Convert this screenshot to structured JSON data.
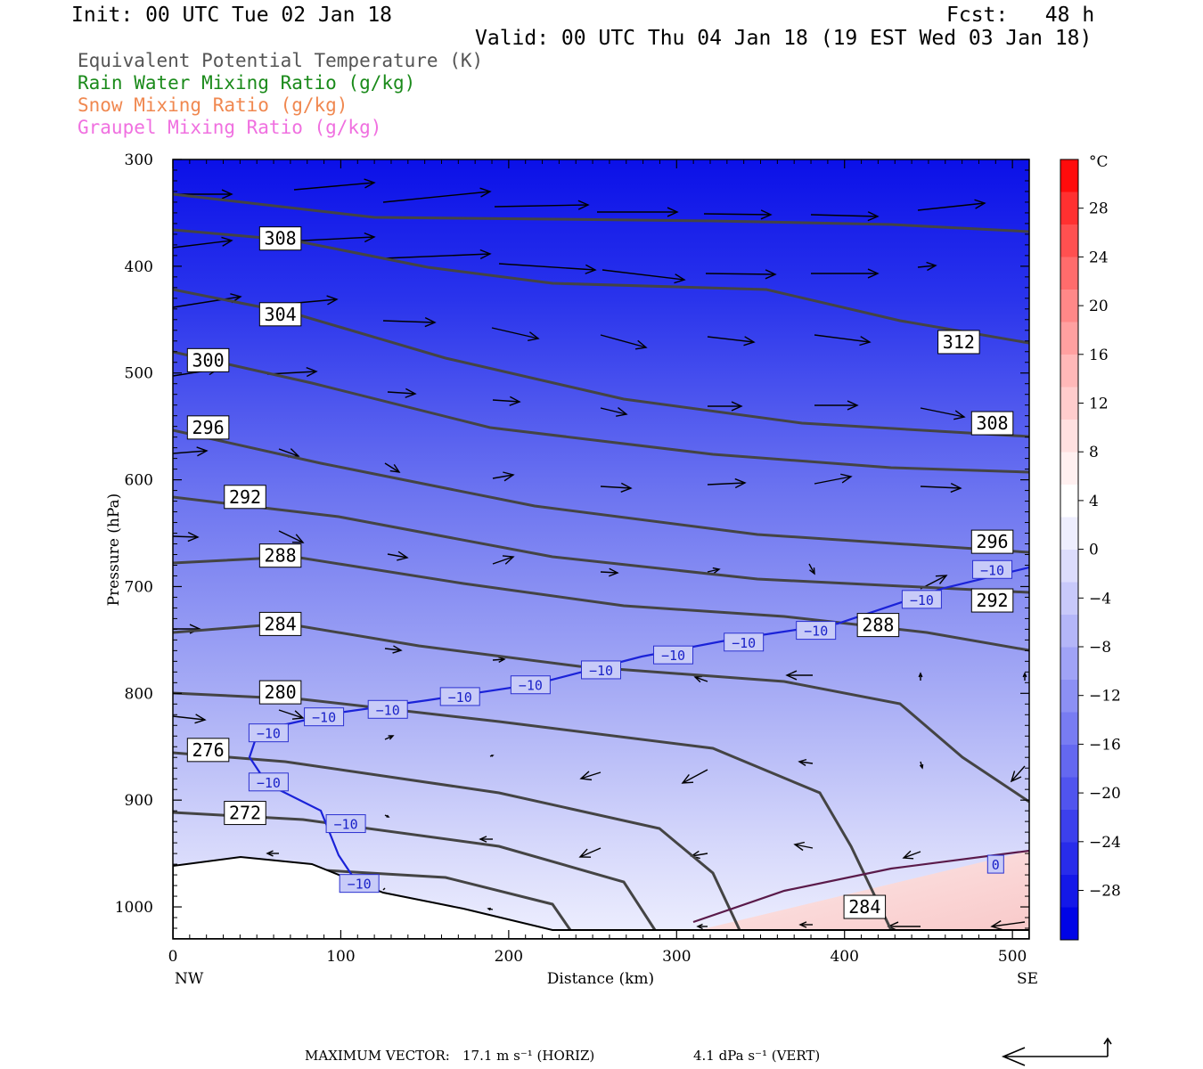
{
  "header": {
    "init": "Init: 00 UTC Tue 02 Jan 18",
    "fcst": "Fcst:   48 h",
    "valid": "Valid: 00 UTC Thu 04 Jan 18 (19 EST Wed 03 Jan 18)"
  },
  "legend": [
    {
      "label": "Equivalent Potential Temperature (K)",
      "color": "#555555"
    },
    {
      "label": "Rain Water Mixing Ratio (g/kg)",
      "color": "#1a8a1a"
    },
    {
      "label": "Snow Mixing Ratio (g/kg)",
      "color": "#f08850"
    },
    {
      "label": "Graupel Mixing Ratio (g/kg)",
      "color": "#f070e0"
    }
  ],
  "footer": {
    "vector_label": "MAXIMUM VECTOR:",
    "horiz": "17.1 m s⁻¹ (HORIZ)",
    "vert": "4.1 dPa s⁻¹ (VERT)"
  },
  "chart_data": {
    "type": "cross-section",
    "xlabel": "Distance (km)",
    "ylabel": "Pressure (hPa)",
    "xlim": [
      0,
      510
    ],
    "ylim": [
      1030,
      300
    ],
    "x_ticks": [
      "0",
      "100",
      "200",
      "300",
      "400",
      "500"
    ],
    "y_ticks": [
      "300",
      "400",
      "500",
      "600",
      "700",
      "800",
      "900",
      "1000"
    ],
    "x_end_labels": {
      "left": "NW",
      "right": "SE"
    },
    "colorbar": {
      "unit": "°C",
      "labels": [
        "28",
        "24",
        "20",
        "16",
        "12",
        "8",
        "4",
        "0",
        "−4",
        "−8",
        "−12",
        "−16",
        "−20",
        "−24",
        "−28"
      ]
    },
    "theta_e_contour_labels": [
      {
        "text": "308",
        "km": 64,
        "hPa": 374
      },
      {
        "text": "304",
        "km": 64,
        "hPa": 445
      },
      {
        "text": "300",
        "km": 21,
        "hPa": 488
      },
      {
        "text": "296",
        "km": 21,
        "hPa": 551
      },
      {
        "text": "292",
        "km": 43,
        "hPa": 616
      },
      {
        "text": "288",
        "km": 64,
        "hPa": 671
      },
      {
        "text": "284",
        "km": 64,
        "hPa": 735
      },
      {
        "text": "280",
        "km": 64,
        "hPa": 799
      },
      {
        "text": "276",
        "km": 21,
        "hPa": 853
      },
      {
        "text": "272",
        "km": 43,
        "hPa": 912
      },
      {
        "text": "312",
        "km": 468,
        "hPa": 471
      },
      {
        "text": "308",
        "km": 488,
        "hPa": 547
      },
      {
        "text": "296",
        "km": 488,
        "hPa": 658
      },
      {
        "text": "292",
        "km": 488,
        "hPa": 713
      },
      {
        "text": "288",
        "km": 420,
        "hPa": 736
      },
      {
        "text": "284",
        "km": 412,
        "hPa": 1000
      }
    ],
    "temperature_contour_labels": [
      {
        "text": "−10",
        "km": 57,
        "hPa": 837
      },
      {
        "text": "−10",
        "km": 90,
        "hPa": 822
      },
      {
        "text": "−10",
        "km": 128,
        "hPa": 815
      },
      {
        "text": "−10",
        "km": 171,
        "hPa": 803
      },
      {
        "text": "−10",
        "km": 213,
        "hPa": 792
      },
      {
        "text": "−10",
        "km": 255,
        "hPa": 778
      },
      {
        "text": "−10",
        "km": 298,
        "hPa": 764
      },
      {
        "text": "−10",
        "km": 340,
        "hPa": 752
      },
      {
        "text": "−10",
        "km": 383,
        "hPa": 741
      },
      {
        "text": "−10",
        "km": 446,
        "hPa": 712
      },
      {
        "text": "−10",
        "km": 488,
        "hPa": 684
      },
      {
        "text": "−10",
        "km": 57,
        "hPa": 883
      },
      {
        "text": "−10",
        "km": 103,
        "hPa": 922
      },
      {
        "text": "−10",
        "km": 111,
        "hPa": 978
      },
      {
        "text": "0",
        "km": 490,
        "hPa": 960
      }
    ]
  }
}
